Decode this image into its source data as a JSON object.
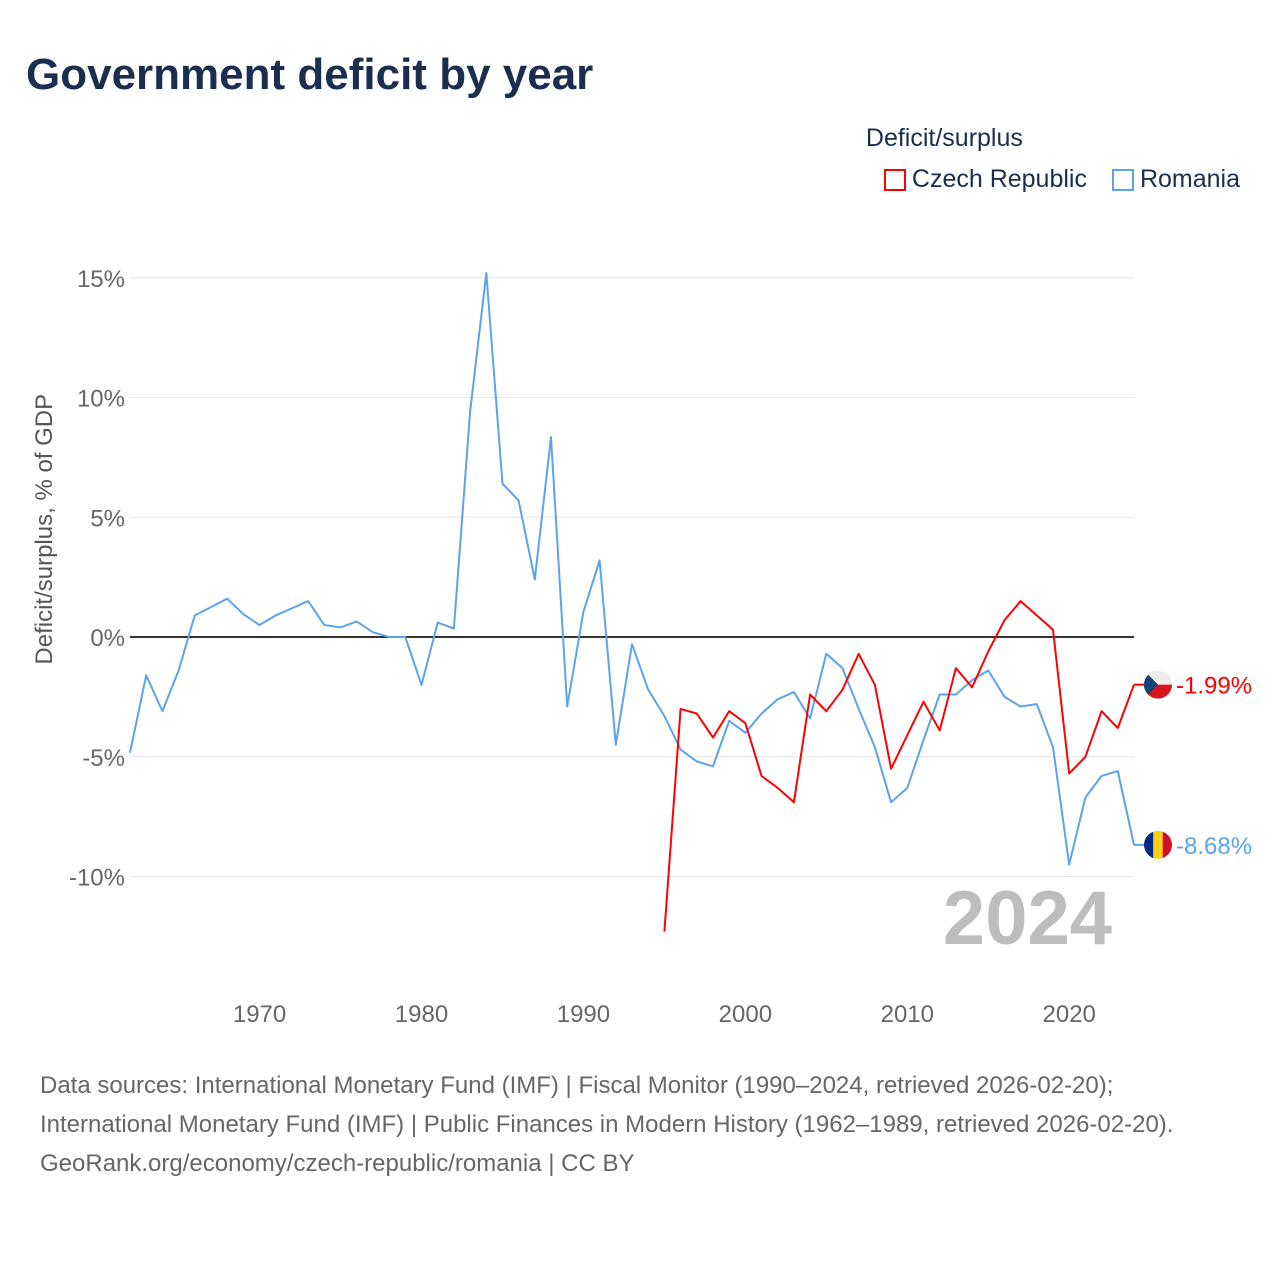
{
  "title": "Government deficit by year",
  "legend": {
    "title": "Deficit/surplus",
    "items": [
      {
        "name": "Czech Republic",
        "color": "#ff0000"
      },
      {
        "name": "Romania",
        "color": "#5ba4ec"
      }
    ]
  },
  "year_label": "2024",
  "source_lines": [
    "Data sources: International Monetary Fund (IMF) | Fiscal Monitor (1990–2024, retrieved 2026-02-20); International Monetary Fund (IMF) | Public Finances in Modern History (1962–1989, retrieved 2026-02-20).",
    "GeoRank.org/economy/czech-republic/romania | CC BY"
  ],
  "chart_data": {
    "type": "line",
    "title": "Government deficit by year",
    "xlabel": "",
    "ylabel": "Deficit/surplus, % of GDP",
    "xlim": [
      1962,
      2024
    ],
    "ylim": [
      -13,
      15.5
    ],
    "xticks": [
      1970,
      1980,
      1990,
      2000,
      2010,
      2020
    ],
    "yticks": [
      15,
      10,
      5,
      0,
      -5,
      -10
    ],
    "ytick_labels": [
      "15%",
      "10%",
      "5%",
      "0%",
      "-5%",
      "-10%"
    ],
    "grid": true,
    "legend_position": "top-right",
    "series": [
      {
        "name": "Czech Republic",
        "color": "#ff0000",
        "end_label": "-1.99%",
        "x": [
          1995,
          1996,
          1997,
          1998,
          1999,
          2000,
          2001,
          2002,
          2003,
          2004,
          2005,
          2006,
          2007,
          2008,
          2009,
          2010,
          2011,
          2012,
          2013,
          2014,
          2015,
          2016,
          2017,
          2018,
          2019,
          2020,
          2021,
          2022,
          2023,
          2024
        ],
        "y": [
          -12.3,
          -3.0,
          -3.2,
          -4.2,
          -3.1,
          -3.6,
          -5.8,
          -6.3,
          -6.9,
          -2.4,
          -3.1,
          -2.2,
          -0.7,
          -2.0,
          -5.5,
          -4.1,
          -2.7,
          -3.9,
          -1.3,
          -2.1,
          -0.6,
          0.7,
          1.5,
          0.9,
          0.3,
          -5.7,
          -5.0,
          -3.1,
          -3.8,
          -1.99
        ]
      },
      {
        "name": "Romania",
        "color": "#5ba4ec",
        "end_label": "-8.68%",
        "x": [
          1962,
          1963,
          1964,
          1965,
          1966,
          1967,
          1968,
          1969,
          1970,
          1971,
          1972,
          1973,
          1974,
          1975,
          1976,
          1977,
          1978,
          1979,
          1980,
          1981,
          1982,
          1983,
          1984,
          1985,
          1986,
          1987,
          1988,
          1989,
          1990,
          1991,
          1992,
          1993,
          1994,
          1995,
          1996,
          1997,
          1998,
          1999,
          2000,
          2001,
          2002,
          2003,
          2004,
          2005,
          2006,
          2007,
          2008,
          2009,
          2010,
          2011,
          2012,
          2013,
          2014,
          2015,
          2016,
          2017,
          2018,
          2019,
          2020,
          2021,
          2022,
          2023,
          2024
        ],
        "y": [
          -4.83,
          -1.6,
          -3.1,
          -1.4,
          0.9,
          1.25,
          1.6,
          0.95,
          0.5,
          0.9,
          1.2,
          1.5,
          0.5,
          0.4,
          0.65,
          0.2,
          0,
          0,
          -2.0,
          0.6,
          0.35,
          9.4,
          15.2,
          6.4,
          5.7,
          2.4,
          8.35,
          -2.9,
          1.05,
          3.2,
          -4.5,
          -0.3,
          -2.2,
          -3.3,
          -4.7,
          -5.2,
          -5.4,
          -3.5,
          -4.0,
          -3.2,
          -2.6,
          -2.3,
          -3.4,
          -0.7,
          -1.3,
          -3.0,
          -4.6,
          -6.9,
          -6.3,
          -4.3,
          -2.4,
          -2.4,
          -1.8,
          -1.4,
          -2.5,
          -2.9,
          -2.8,
          -4.6,
          -9.5,
          -6.7,
          -5.8,
          -5.6,
          -8.68
        ]
      }
    ]
  }
}
